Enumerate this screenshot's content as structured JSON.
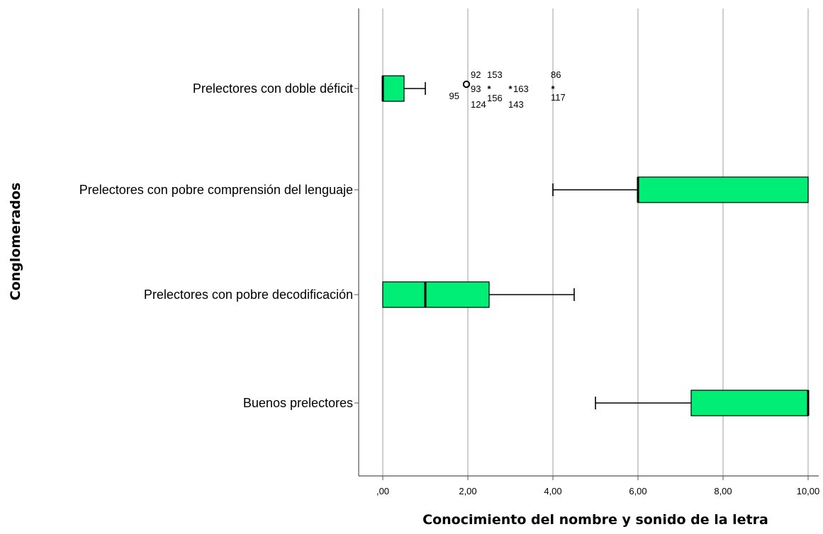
{
  "chart_data": {
    "type": "boxplot",
    "orientation": "horizontal",
    "xlabel": "Conocimiento del nombre y sonido de la letra",
    "ylabel": "Conglomerados",
    "xlim": [
      -0.5,
      10.3
    ],
    "x_ticks": [
      0,
      2,
      4,
      6,
      8,
      10
    ],
    "x_tick_labels": [
      ",00",
      "2,00",
      "4,00",
      "6,00",
      "8,00",
      "10,00"
    ],
    "grid": "vertical",
    "box_color": "#00EE76",
    "groups": [
      {
        "name": "Prelectores con doble déficit",
        "whisker_low": 0,
        "q1": 0,
        "median": 0,
        "q3": 0.5,
        "whisker_high": 1,
        "outliers": [
          {
            "value": 2.0,
            "marker": "circle",
            "label": "92",
            "label_pos": "above-right"
          },
          {
            "value": 2.0,
            "marker": "circle",
            "label": "93",
            "label_pos": "right"
          },
          {
            "value": 2.0,
            "marker": "circle",
            "label": "95",
            "label_pos": "below-left"
          },
          {
            "value": 2.0,
            "marker": "circle",
            "label": "124",
            "label_pos": "below-right"
          },
          {
            "value": 2.5,
            "marker": "star",
            "label": "153",
            "label_pos": "above"
          },
          {
            "value": 2.5,
            "marker": "star",
            "label": "156",
            "label_pos": "below"
          },
          {
            "value": 3.0,
            "marker": "star",
            "label": "163",
            "label_pos": "right"
          },
          {
            "value": 3.0,
            "marker": "star",
            "label": "143",
            "label_pos": "below"
          },
          {
            "value": 4.0,
            "marker": "star",
            "label": "86",
            "label_pos": "above"
          },
          {
            "value": 4.0,
            "marker": "star",
            "label": "117",
            "label_pos": "below"
          }
        ]
      },
      {
        "name": "Prelectores con pobre comprensión del lenguaje",
        "whisker_low": 4,
        "q1": 6,
        "median": 6,
        "q3": 10,
        "whisker_high": 10,
        "outliers": []
      },
      {
        "name": "Prelectores con pobre decodificación",
        "whisker_low": 0,
        "q1": 0,
        "median": 1,
        "q3": 2.5,
        "whisker_high": 4.5,
        "outliers": []
      },
      {
        "name": "Buenos prelectores",
        "whisker_low": 5,
        "q1": 7.25,
        "median": 10,
        "q3": 10,
        "whisker_high": 10,
        "outliers": []
      }
    ]
  }
}
